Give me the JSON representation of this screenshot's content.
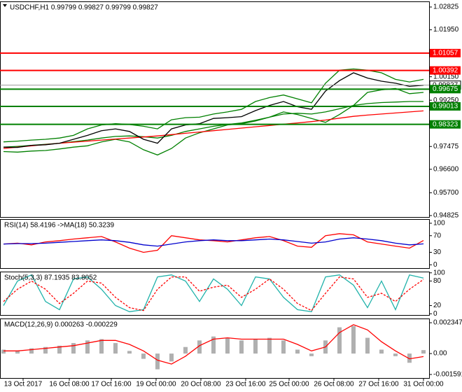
{
  "chart_data": [
    {
      "type": "line",
      "title": "USDCHF,H1 0.99799 0.99827 0.99799 0.99827",
      "xlim": [
        0,
        30
      ],
      "ylim": [
        0.9477,
        1.0304
      ],
      "yticks": [
        {
          "value": 1.02825,
          "label": "1.02825"
        },
        {
          "value": 1.0195,
          "label": "1.01950"
        },
        {
          "value": 1.0015,
          "label": "1.00150"
        },
        {
          "value": 0.9925,
          "label": "0.99250"
        },
        {
          "value": 0.97475,
          "label": "0.97475"
        },
        {
          "value": 0.966,
          "label": "0.96600"
        },
        {
          "value": 0.957,
          "label": "0.95700"
        },
        {
          "value": 0.94825,
          "label": "0.94825"
        }
      ],
      "levels": [
        1.01057,
        1.00392,
        0.99675,
        0.99013,
        0.98323
      ],
      "level_colors": [
        "#ff0000",
        "#ff0000",
        "#008000",
        "#008000",
        "#008000"
      ],
      "last_price": 0.99827,
      "series": [
        {
          "color": "#008000",
          "values": [
            0.9765,
            0.9768,
            0.9772,
            0.9775,
            0.978,
            0.979,
            0.9815,
            0.983,
            0.9835,
            0.9832,
            0.9825,
            0.9815,
            0.985,
            0.9858,
            0.986,
            0.9872,
            0.988,
            0.989,
            0.992,
            0.9935,
            0.9945,
            0.993,
            0.9915,
            0.999,
            1.004,
            1.0045,
            1.004,
            1.003,
            1.0005,
            0.9995,
            1.0005
          ]
        },
        {
          "color": "#008000",
          "values": [
            0.9728,
            0.9726,
            0.973,
            0.9732,
            0.9738,
            0.9745,
            0.975,
            0.9765,
            0.9775,
            0.9765,
            0.9735,
            0.9715,
            0.974,
            0.978,
            0.98,
            0.9815,
            0.983,
            0.9835,
            0.9845,
            0.986,
            0.988,
            0.987,
            0.9855,
            0.984,
            0.987,
            0.9905,
            0.9955,
            0.9965,
            0.997,
            0.995,
            0.9955
          ]
        },
        {
          "color": "#008000",
          "values": [
            0.9745,
            0.9748,
            0.9752,
            0.9756,
            0.976,
            0.9766,
            0.9772,
            0.978,
            0.9786,
            0.9788,
            0.9785,
            0.978,
            0.979,
            0.9805,
            0.9815,
            0.9825,
            0.9832,
            0.9838,
            0.9848,
            0.986,
            0.9872,
            0.9875,
            0.9872,
            0.988,
            0.9892,
            0.9905,
            0.9912,
            0.9916,
            0.9918,
            0.992,
            0.992
          ]
        },
        {
          "color": "#ff0000",
          "values": [
            0.974,
            0.9745,
            0.975,
            0.9755,
            0.976,
            0.9764,
            0.9768,
            0.9772,
            0.9776,
            0.978,
            0.9784,
            0.9788,
            0.9793,
            0.9798,
            0.9803,
            0.9808,
            0.9813,
            0.9818,
            0.9823,
            0.9828,
            0.9833,
            0.9838,
            0.9843,
            0.9849,
            0.9856,
            0.9863,
            0.9868,
            0.9872,
            0.9876,
            0.988,
            0.9884
          ]
        },
        {
          "color": "#000000",
          "values": [
            0.9745,
            0.9744,
            0.9752,
            0.9754,
            0.976,
            0.9775,
            0.979,
            0.9808,
            0.9815,
            0.9805,
            0.9775,
            0.976,
            0.9815,
            0.983,
            0.9835,
            0.9855,
            0.9858,
            0.9862,
            0.9885,
            0.9905,
            0.992,
            0.99,
            0.989,
            0.996,
            1.0,
            1.003,
            1.001,
            0.9998,
            0.999,
            0.9978,
            0.99827
          ]
        }
      ]
    },
    {
      "type": "line",
      "title": "RSI(14) 58.4196 ->MA(18) 50.3239",
      "xlim": [
        0,
        30
      ],
      "ylim": [
        -8,
        110
      ],
      "yticks": [
        100,
        70,
        30,
        0
      ],
      "series": [
        {
          "color": "#ff0000",
          "values": [
            50,
            52,
            48,
            55,
            58,
            62,
            65,
            68,
            55,
            40,
            30,
            35,
            70,
            65,
            60,
            58,
            55,
            60,
            65,
            68,
            58,
            45,
            42,
            70,
            75,
            72,
            55,
            50,
            45,
            40,
            58.4196
          ]
        },
        {
          "color": "#0000cd",
          "values": [
            50,
            51,
            51,
            52,
            54,
            56,
            58,
            60,
            58,
            54,
            48,
            45,
            50,
            55,
            58,
            60,
            58,
            58,
            60,
            62,
            60,
            56,
            52,
            55,
            62,
            65,
            62,
            58,
            52,
            48,
            50.3239
          ]
        }
      ]
    },
    {
      "type": "line",
      "title": "Stoch(5,3,3) 87.1935 83.8052",
      "xlim": [
        0,
        30
      ],
      "ylim": [
        -3,
        103
      ],
      "yticks": [
        100,
        80,
        20,
        0
      ],
      "series": [
        {
          "color": "#20b2aa",
          "values": [
            20,
            80,
            95,
            30,
            10,
            85,
            90,
            60,
            20,
            5,
            10,
            90,
            95,
            80,
            30,
            85,
            60,
            20,
            90,
            85,
            40,
            10,
            5,
            90,
            95,
            70,
            15,
            80,
            10,
            95,
            87.1935
          ]
        },
        {
          "color": "#ff0000",
          "dashed": true,
          "values": [
            30,
            60,
            80,
            60,
            25,
            50,
            80,
            75,
            40,
            15,
            8,
            60,
            90,
            90,
            55,
            65,
            70,
            40,
            60,
            85,
            60,
            25,
            8,
            50,
            90,
            85,
            40,
            50,
            30,
            60,
            83.8052
          ]
        }
      ]
    },
    {
      "type": "bar",
      "title": "MACD(12,26,9) 0.000263 -0.000229",
      "xlim": [
        0,
        30
      ],
      "ylim": [
        -0.00186,
        0.00267
      ],
      "yticks": [
        0.002347,
        {
          "value": 0,
          "label": "0.00"
        },
        -0.001591
      ],
      "xticks": [
        {
          "value": 1.4,
          "label": "13 Oct 2017"
        },
        {
          "value": 4.7,
          "label": "16 Oct 08:00"
        },
        {
          "value": 7.7,
          "label": "17 Oct 16:00"
        },
        {
          "value": 10.9,
          "label": "19 Oct 00:00"
        },
        {
          "value": 14.1,
          "label": "20 Oct 08:00"
        },
        {
          "value": 17.3,
          "label": "23 Oct 16:00"
        },
        {
          "value": 20.4,
          "label": "25 Oct 00:00"
        },
        {
          "value": 23.6,
          "label": "26 Oct 08:00"
        },
        {
          "value": 26.8,
          "label": "27 Oct 16:00"
        },
        {
          "value": 30,
          "label": "31 Oct 00:00"
        }
      ],
      "series": [
        {
          "color": "#b0b0b0",
          "kind": "histogram",
          "values": [
            0.0003,
            0.0002,
            0.0004,
            0.0005,
            0.0006,
            0.0008,
            0.001,
            0.0011,
            0.0008,
            0.0002,
            -0.0004,
            -0.0012,
            -0.0006,
            0.0005,
            0.001,
            0.0013,
            0.0012,
            0.001,
            0.0011,
            0.0012,
            0.001,
            0.0003,
            -0.0002,
            0.001,
            0.002,
            0.0021,
            0.0012,
            0.0003,
            -0.0002,
            -0.0007,
            0.000263
          ]
        },
        {
          "color": "#ff0000",
          "values": [
            0.0002,
            0.0002,
            0.0003,
            0.0004,
            0.0005,
            0.0006,
            0.0008,
            0.001,
            0.001,
            0.0007,
            0.0002,
            -0.0005,
            -0.0008,
            -0.0002,
            0.0006,
            0.0011,
            0.0012,
            0.0011,
            0.0011,
            0.0011,
            0.0011,
            0.0007,
            0.0002,
            0.0005,
            0.0016,
            0.0022,
            0.0018,
            0.0009,
            0.0002,
            -0.0004,
            -0.000229
          ]
        }
      ]
    }
  ]
}
